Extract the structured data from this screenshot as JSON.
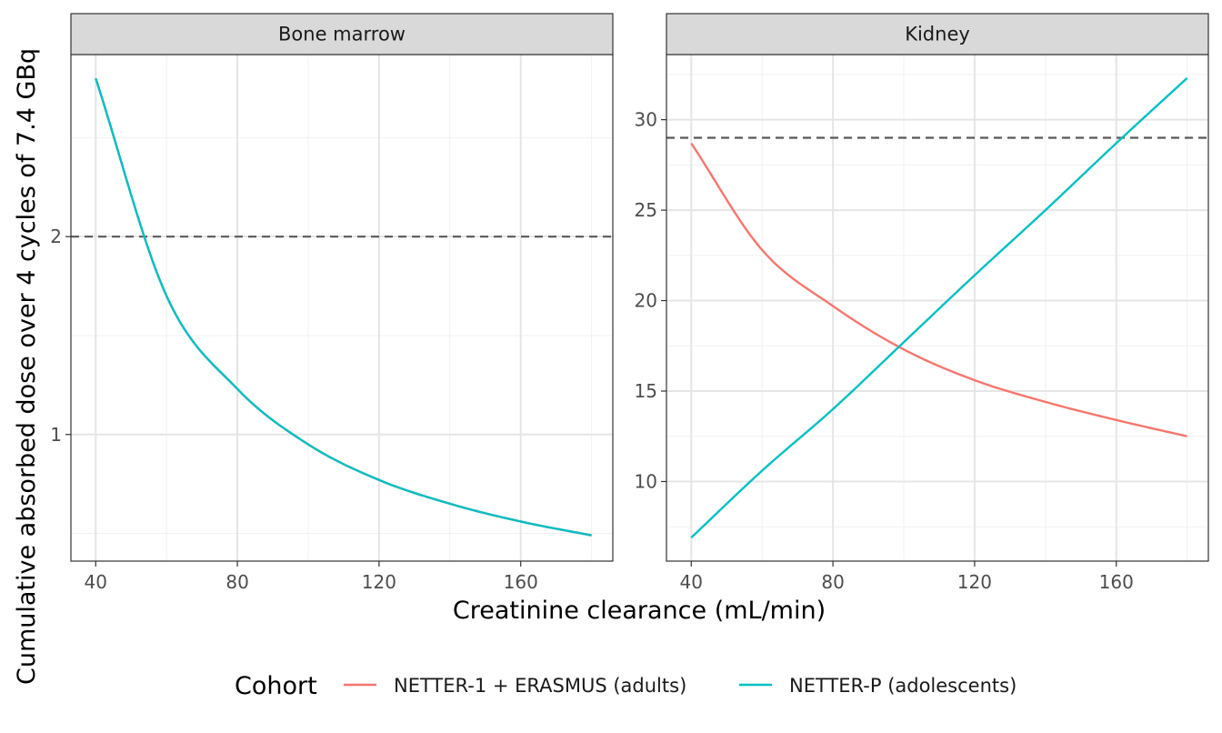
{
  "chart_data": {
    "type": "line",
    "xlabel": "Creatinine clearance (mL/min)",
    "ylabel": "Cumulative absorbed dose over 4 cycles of 7.4 GBq",
    "legend": {
      "title": "Cohort",
      "placement": "bottom",
      "entries": [
        {
          "name": "NETTER-1 + ERASMUS (adults)",
          "color": "#F8766D"
        },
        {
          "name": "NETTER-P (adolescents)",
          "color": "#00BFC4"
        }
      ]
    },
    "grid": true,
    "panels": [
      {
        "title": "Bone marrow",
        "xlim": [
          33,
          186
        ],
        "ylim": [
          0.36,
          2.92
        ],
        "xticks": [
          40,
          80,
          120,
          160
        ],
        "yticks": [
          1,
          2
        ],
        "threshold": 2,
        "series": [
          {
            "name": "NETTER-1 + ERASMUS (adults)",
            "x": [
              40,
              60,
              80,
              100,
              120,
              140,
              160,
              180
            ],
            "y": [
              2.8,
              1.7,
              1.23,
              0.95,
              0.77,
              0.65,
              0.56,
              0.49
            ]
          },
          {
            "name": "NETTER-P (adolescents)",
            "x": [
              40,
              60,
              80,
              100,
              120,
              140,
              160,
              180
            ],
            "y": [
              2.8,
              1.7,
              1.23,
              0.95,
              0.77,
              0.65,
              0.56,
              0.49
            ]
          }
        ]
      },
      {
        "title": "Kidney",
        "xlim": [
          33,
          186
        ],
        "ylim": [
          5.6,
          33.6
        ],
        "xticks": [
          40,
          80,
          120,
          160
        ],
        "yticks": [
          10,
          15,
          20,
          25,
          30
        ],
        "threshold": 29,
        "series": [
          {
            "name": "NETTER-1 + ERASMUS (adults)",
            "x": [
              40,
              60,
              80,
              100,
              120,
              140,
              160,
              180
            ],
            "y": [
              28.7,
              22.8,
              19.7,
              17.3,
              15.6,
              14.4,
              13.4,
              12.5
            ]
          },
          {
            "name": "NETTER-P (adolescents)",
            "x": [
              40,
              60,
              80,
              100,
              120,
              140,
              160,
              180
            ],
            "y": [
              6.9,
              10.6,
              14.0,
              17.7,
              21.4,
              25.0,
              28.7,
              32.3
            ]
          }
        ]
      }
    ]
  }
}
